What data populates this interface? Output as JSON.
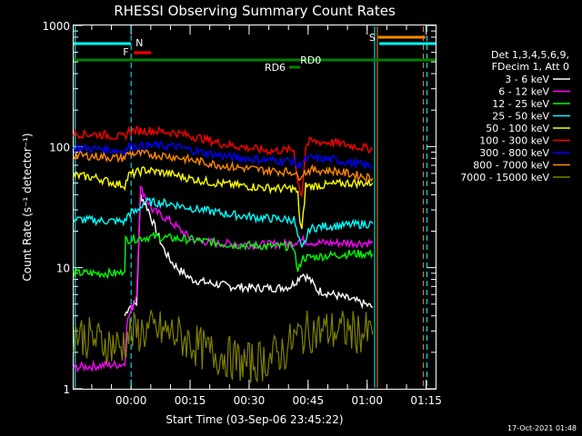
{
  "chart_data": {
    "type": "line",
    "title": "RHESSI Observing Summary Count Rates",
    "xlabel": "Start Time (03-Sep-06 23:45:22)",
    "ylabel": "Count Rate (s⁻¹ detector⁻¹)",
    "yscale": "log",
    "ylim": [
      1,
      1000
    ],
    "xlim_minutes": [
      0,
      92
    ],
    "x_ticks": [
      {
        "label": "00:00",
        "minute": 14.6
      },
      {
        "label": "00:15",
        "minute": 29.6
      },
      {
        "label": "00:30",
        "minute": 44.6
      },
      {
        "label": "00:45",
        "minute": 59.6
      },
      {
        "label": "01:00",
        "minute": 74.6
      },
      {
        "label": "01:15",
        "minute": 89.6
      }
    ],
    "y_ticks": [
      {
        "label": "1",
        "value": 1
      },
      {
        "label": "10",
        "value": 10
      },
      {
        "label": "100",
        "value": 100
      },
      {
        "label": "1000",
        "value": 1000
      }
    ],
    "legend_header": [
      "Det 1,3,4,5,6,9,",
      "FDecim 1, Att 0"
    ],
    "series": [
      {
        "name": "3 - 6 keV",
        "color": "#ffffff",
        "points": [
          [
            13,
            4
          ],
          [
            14,
            4.8
          ],
          [
            16,
            5
          ],
          [
            17,
            40
          ],
          [
            19,
            30
          ],
          [
            21,
            20
          ],
          [
            23,
            14
          ],
          [
            25,
            11
          ],
          [
            27,
            9.5
          ],
          [
            30,
            8
          ],
          [
            34,
            7.5
          ],
          [
            40,
            7
          ],
          [
            46,
            6.8
          ],
          [
            52,
            6.8
          ],
          [
            55,
            7
          ],
          [
            57,
            8
          ],
          [
            58,
            9
          ],
          [
            60,
            8
          ],
          [
            62,
            6.5
          ],
          [
            66,
            6
          ],
          [
            70,
            5.5
          ],
          [
            74,
            5
          ],
          [
            76,
            4.7
          ]
        ]
      },
      {
        "name": "6 - 12 keV",
        "color": "#ff00ff",
        "points": [
          [
            0,
            1.5
          ],
          [
            13,
            1.6
          ],
          [
            13.5,
            3.5
          ],
          [
            16,
            6
          ],
          [
            17,
            45
          ],
          [
            18,
            40
          ],
          [
            20,
            30
          ],
          [
            24,
            25
          ],
          [
            30,
            17
          ],
          [
            36,
            16
          ],
          [
            44,
            15.5
          ],
          [
            50,
            15.5
          ],
          [
            56,
            16
          ],
          [
            57,
            17
          ],
          [
            62,
            16
          ],
          [
            68,
            16
          ],
          [
            74,
            16
          ],
          [
            76,
            16
          ]
        ]
      },
      {
        "name": "12 - 25 keV",
        "color": "#00ff00",
        "points": [
          [
            0,
            9
          ],
          [
            12,
            9
          ],
          [
            13,
            10
          ],
          [
            13.2,
            17
          ],
          [
            20,
            18
          ],
          [
            30,
            17
          ],
          [
            40,
            15.5
          ],
          [
            50,
            15
          ],
          [
            56,
            15
          ],
          [
            57,
            9
          ],
          [
            58,
            12
          ],
          [
            64,
            12.5
          ],
          [
            70,
            13
          ],
          [
            74,
            13
          ],
          [
            76,
            13
          ]
        ]
      },
      {
        "name": "25 - 50 keV",
        "color": "#00ffff",
        "points": [
          [
            0,
            25
          ],
          [
            13,
            24
          ],
          [
            14,
            28
          ],
          [
            16,
            29
          ],
          [
            18,
            35
          ],
          [
            24,
            34
          ],
          [
            30,
            31
          ],
          [
            38,
            28
          ],
          [
            46,
            26
          ],
          [
            54,
            25
          ],
          [
            56,
            25
          ],
          [
            57,
            18
          ],
          [
            58,
            14
          ],
          [
            59,
            17
          ],
          [
            60,
            21
          ],
          [
            64,
            22
          ],
          [
            70,
            22.5
          ],
          [
            74,
            23
          ],
          [
            76,
            23
          ]
        ]
      },
      {
        "name": "50 - 100 keV",
        "color": "#ffff00",
        "points": [
          [
            0,
            58
          ],
          [
            6,
            55
          ],
          [
            10,
            50
          ],
          [
            13,
            48
          ],
          [
            14,
            58
          ],
          [
            18,
            64
          ],
          [
            24,
            60
          ],
          [
            30,
            54
          ],
          [
            36,
            50
          ],
          [
            44,
            47
          ],
          [
            52,
            45
          ],
          [
            56,
            45
          ],
          [
            57,
            40
          ],
          [
            57.5,
            24
          ],
          [
            58,
            20
          ],
          [
            59,
            48
          ],
          [
            60,
            47
          ],
          [
            64,
            48
          ],
          [
            70,
            50
          ],
          [
            76,
            50
          ]
        ]
      },
      {
        "name": "100 - 300 keV",
        "color": "#ff0000",
        "points": [
          [
            0,
            128
          ],
          [
            8,
            125
          ],
          [
            12,
            120
          ],
          [
            13,
            120
          ],
          [
            14,
            135
          ],
          [
            20,
            135
          ],
          [
            26,
            130
          ],
          [
            32,
            118
          ],
          [
            38,
            105
          ],
          [
            44,
            98
          ],
          [
            50,
            92
          ],
          [
            56,
            94
          ],
          [
            57,
            50
          ],
          [
            58,
            40
          ],
          [
            59,
            100
          ],
          [
            60,
            110
          ],
          [
            66,
            108
          ],
          [
            72,
            100
          ],
          [
            76,
            95
          ]
        ]
      },
      {
        "name": "300 - 800 keV",
        "color": "#0000ff",
        "points": [
          [
            0,
            98
          ],
          [
            8,
            95
          ],
          [
            12,
            92
          ],
          [
            13,
            92
          ],
          [
            14,
            100
          ],
          [
            20,
            102
          ],
          [
            26,
            100
          ],
          [
            32,
            90
          ],
          [
            40,
            82
          ],
          [
            48,
            78
          ],
          [
            54,
            76
          ],
          [
            56,
            76
          ],
          [
            57,
            68
          ],
          [
            58,
            75
          ],
          [
            60,
            80
          ],
          [
            66,
            78
          ],
          [
            72,
            72
          ],
          [
            76,
            68
          ]
        ]
      },
      {
        "name": "800 - 7000 keV",
        "color": "#ff8800",
        "points": [
          [
            0,
            85
          ],
          [
            8,
            82
          ],
          [
            12,
            80
          ],
          [
            13,
            82
          ],
          [
            14,
            88
          ],
          [
            20,
            86
          ],
          [
            26,
            82
          ],
          [
            32,
            75
          ],
          [
            40,
            68
          ],
          [
            48,
            64
          ],
          [
            54,
            62
          ],
          [
            56,
            62
          ],
          [
            57,
            55
          ],
          [
            58,
            60
          ],
          [
            60,
            64
          ],
          [
            66,
            63
          ],
          [
            72,
            58
          ],
          [
            76,
            55
          ]
        ]
      },
      {
        "name": "7000 - 15000 keV",
        "color": "#808000",
        "points": [
          [
            0,
            3
          ],
          [
            4,
            2.6
          ],
          [
            8,
            2.4
          ],
          [
            12,
            2.2
          ],
          [
            14,
            2.8
          ],
          [
            18,
            3
          ],
          [
            22,
            3
          ],
          [
            26,
            2.8
          ],
          [
            30,
            2.4
          ],
          [
            34,
            2
          ],
          [
            38,
            1.9
          ],
          [
            44,
            1.6
          ],
          [
            50,
            1.8
          ],
          [
            54,
            2.1
          ],
          [
            56,
            2.6
          ],
          [
            60,
            3
          ],
          [
            64,
            3
          ],
          [
            70,
            3
          ],
          [
            76,
            2.8
          ]
        ]
      }
    ],
    "annotations": {
      "night": {
        "label": "N",
        "color": "#00ffff",
        "intervals": [
          [
            0,
            14.6
          ],
          [
            77.7,
            92
          ]
        ]
      },
      "flare": {
        "label": "F",
        "color": "#ff0000",
        "interval": [
          15.3,
          19.7
        ]
      },
      "saa": {
        "label": "S",
        "color": "#ff8800",
        "interval": [
          77.4,
          89.4
        ]
      },
      "rd0": {
        "label": "RD0",
        "color": "#008000",
        "interval": [
          0,
          92
        ]
      },
      "rd6": {
        "label": "RD6",
        "color": "#008000",
        "interval": [
          54.8,
          57.6
        ]
      }
    },
    "vertical_markers": [
      {
        "minute": 0.4,
        "color": "#00ffff",
        "style": "solid"
      },
      {
        "minute": 14.6,
        "color": "#00ffff",
        "style": "dashed"
      },
      {
        "minute": 76.5,
        "color": "#00ffff",
        "style": "solid"
      },
      {
        "minute": 77.2,
        "color": "#ff8800",
        "style": "solid"
      },
      {
        "minute": 88.9,
        "color": "#ff8800",
        "style": "dashed"
      },
      {
        "minute": 89.8,
        "color": "#00ffff",
        "style": "dashed"
      }
    ]
  },
  "footer": {
    "timestamp": "17-Oct-2021 01:48"
  }
}
